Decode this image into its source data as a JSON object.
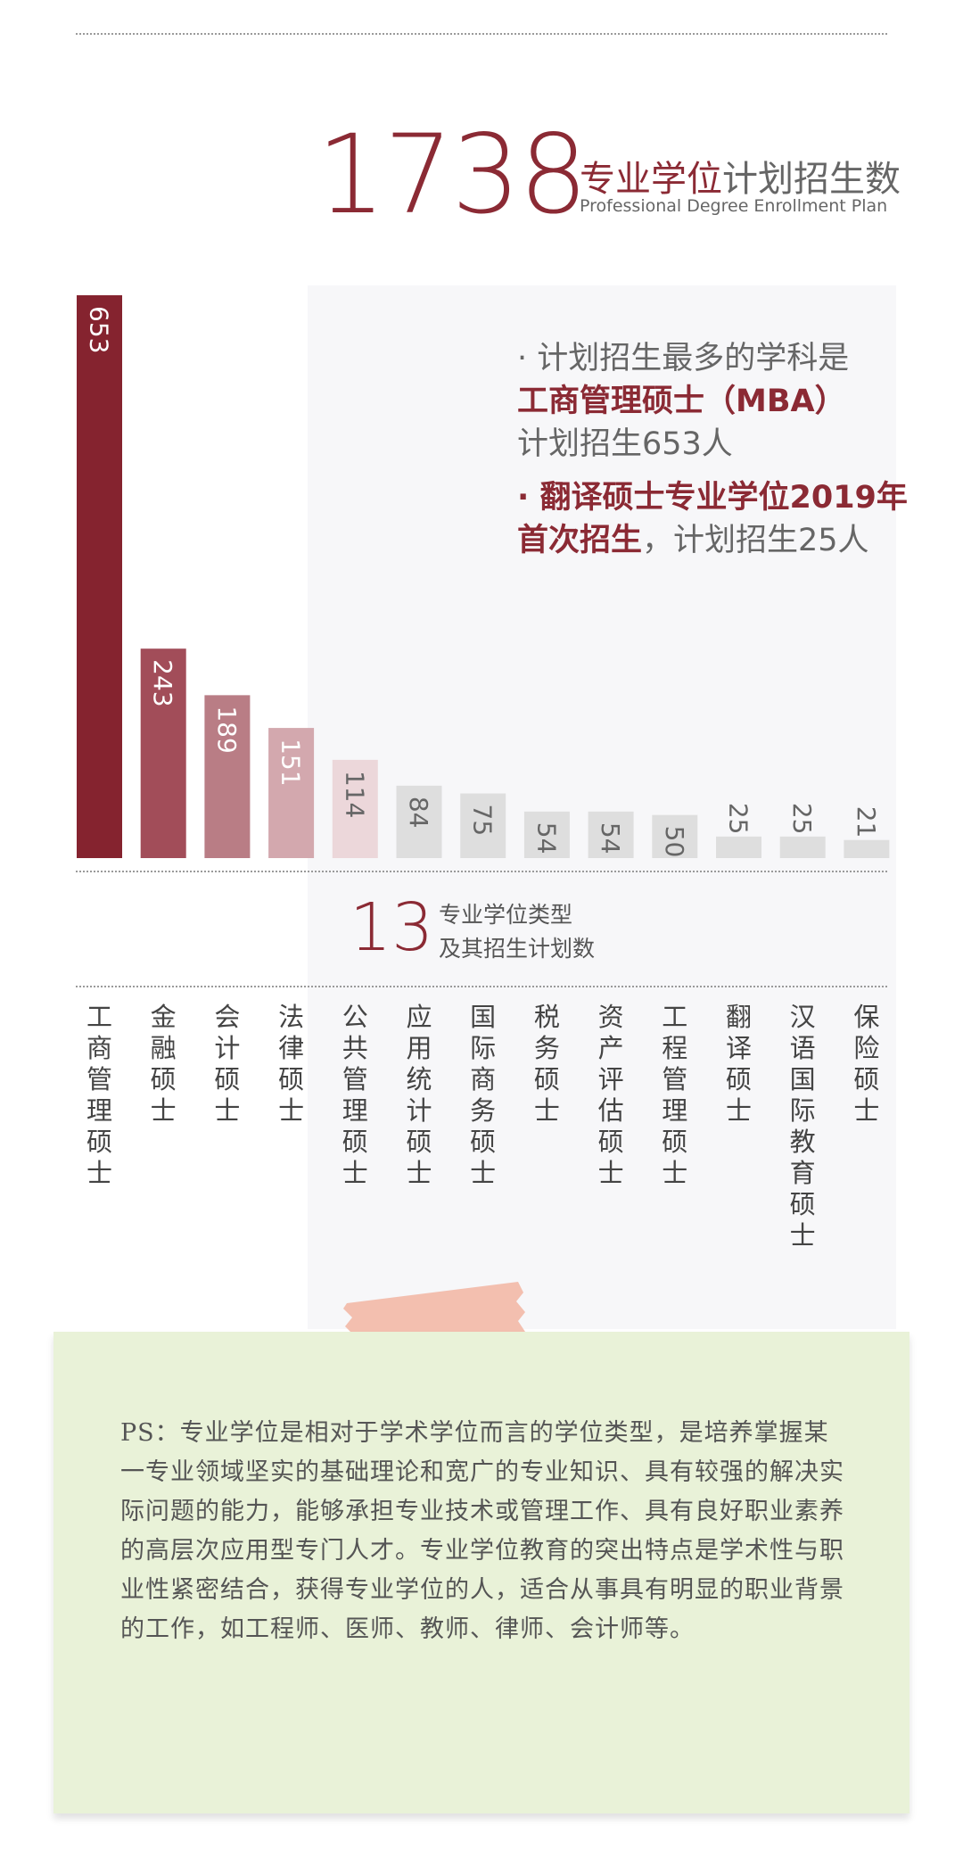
{
  "headline": {
    "number": "1738",
    "title_accent": "专业学位",
    "title_rest": "计划招生数",
    "subtitle_en": "Professional Degree Enrollment Plan"
  },
  "facts": {
    "f1_line1": "· 计划招生最多的学科是",
    "f1_line2": "工商管理硕士（MBA）",
    "f1_line3": "计划招生653人",
    "f2_bold": "· 翻译硕士专业学位2019年首次招生",
    "f2_rest": "，计划招生25人"
  },
  "summary": {
    "number": "13",
    "line1": "专业学位类型",
    "line2": "及其招生计划数"
  },
  "colors": {
    "accent": "#8b2a34",
    "bar_gray": "#dedede"
  },
  "chart_data": {
    "type": "bar",
    "categories": [
      "工商管理硕士",
      "金融硕士",
      "会计硕士",
      "法律硕士",
      "公共管理硕士",
      "应用统计硕士",
      "国际商务硕士",
      "税务硕士",
      "资产评估硕士",
      "工程管理硕士",
      "翻译硕士",
      "汉语国际教育硕士",
      "保险硕士"
    ],
    "values": [
      653,
      243,
      189,
      151,
      114,
      84,
      75,
      54,
      54,
      50,
      25,
      25,
      21
    ],
    "labels": [
      "653",
      "243",
      "189",
      "151",
      "114",
      "84",
      "75",
      "54",
      "54",
      "50",
      "25",
      "25",
      "21"
    ],
    "colors": [
      "#85232f",
      "#a24d59",
      "#b97d85",
      "#d3a8ae",
      "#ecd7da",
      "#dedede",
      "#dedede",
      "#dedede",
      "#dedede",
      "#dedede",
      "#dedede",
      "#dedede",
      "#dedede"
    ],
    "ylim": [
      0,
      653
    ]
  },
  "note": {
    "text": "PS：专业学位是相对于学术学位而言的学位类型，是培养掌握某一专业领域坚实的基础理论和宽广的专业知识、具有较强的解决实际问题的能力，能够承担专业技术或管理工作、具有良好职业素养的高层次应用型专门人才。专业学位教育的突出特点是学术性与职业性紧密结合，获得专业学位的人，适合从事具有明显的职业背景的工作，如工程师、医师、教师、律师、会计师等。"
  }
}
